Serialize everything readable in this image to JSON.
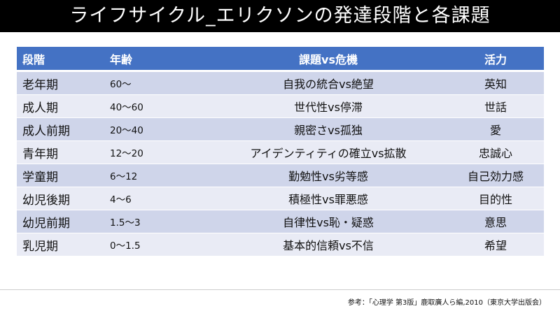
{
  "title": "ライフサイクル_エリクソンの発達段階と各課題",
  "table": {
    "headers": [
      "段階",
      "年齢",
      "課題vs危機",
      "活力"
    ],
    "rows": [
      {
        "stage": "老年期",
        "age": "60～",
        "task": "自我の統合vs絶望",
        "virtue": "英知"
      },
      {
        "stage": "成人期",
        "age": "40～60",
        "task": "世代性vs停滞",
        "virtue": "世話"
      },
      {
        "stage": "成人前期",
        "age": "20～40",
        "task": "親密さvs孤独",
        "virtue": "愛"
      },
      {
        "stage": "青年期",
        "age": "12～20",
        "task": "アイデンティティの確立vs拡散",
        "virtue": "忠誠心"
      },
      {
        "stage": "学童期",
        "age": "6～12",
        "task": "勤勉性vs劣等感",
        "virtue": "自己効力感"
      },
      {
        "stage": "幼児後期",
        "age": "4～6",
        "task": "積極性vs罪悪感",
        "virtue": "目的性"
      },
      {
        "stage": "幼児前期",
        "age": "1.5～3",
        "task": "自律性vs恥・疑惑",
        "virtue": "意思"
      },
      {
        "stage": "乳児期",
        "age": "0～1.5",
        "task": "基本的信頼vs不信",
        "virtue": "希望"
      }
    ]
  },
  "source": "参考：「心理学 第3版」鹿取廣人ら編,2010（東京大学出版会）",
  "colors": {
    "header_bg": "#4472c4",
    "row_dark": "#cfd5ea",
    "row_light": "#e9ebf5",
    "title_bg": "#000000"
  }
}
